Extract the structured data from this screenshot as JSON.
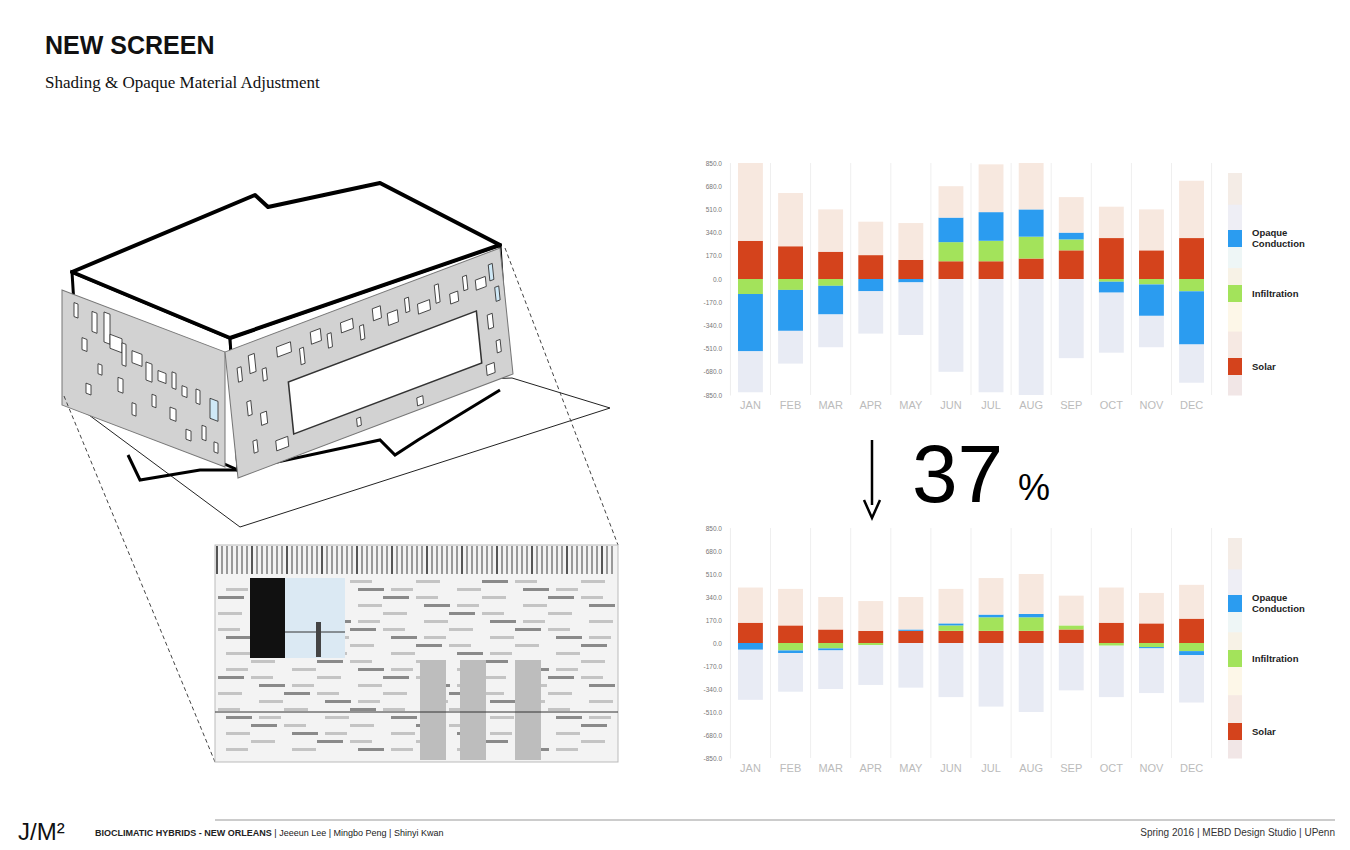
{
  "page": {
    "title": "NEW SCREEN",
    "subtitle": "Shading & Opaque Material Adjustment",
    "change": {
      "value": 37,
      "unit": "%"
    },
    "footer": {
      "logo": "J/M²",
      "project": "BIOCLIMATIC HYBRIDS - NEW ORLEANS",
      "authors": " | Jeeeun Lee | Mingbo Peng | Shinyi Kwan",
      "credit": "Spring 2016 | MEBD Design Studio | UPenn"
    }
  },
  "chart_data": [
    {
      "type": "bar",
      "stacked": true,
      "grid": true,
      "legend": "right",
      "categories": [
        "JAN",
        "FEB",
        "MAR",
        "APR",
        "MAY",
        "JUN",
        "JUL",
        "AUG",
        "SEP",
        "OCT",
        "NOV",
        "DEC"
      ],
      "ylim": [
        -850,
        850
      ],
      "yticks": [
        {
          "value": -850,
          "label": "-850.0"
        },
        {
          "value": -680,
          "label": "-680.0"
        },
        {
          "value": -510,
          "label": "-510.0"
        },
        {
          "value": -340,
          "label": "-340.0"
        },
        {
          "value": -170,
          "label": "-170.0"
        },
        {
          "value": 0,
          "label": "0.0"
        },
        {
          "value": 170,
          "label": "170.0"
        },
        {
          "value": 340,
          "label": "340.0"
        },
        {
          "value": 510,
          "label": "510.0"
        },
        {
          "value": 680,
          "label": "680.0"
        },
        {
          "value": 850,
          "label": "850.0"
        }
      ],
      "series": [
        {
          "name": "Opaque Conduction",
          "color": "#2b9cf0",
          "values": [
            -420,
            -300,
            -210,
            -90,
            -25,
            180,
            210,
            200,
            50,
            -80,
            -230,
            -390
          ]
        },
        {
          "name": "Infiltration",
          "color": "#a3e35b",
          "values": [
            -110,
            -80,
            -50,
            0,
            0,
            140,
            150,
            160,
            80,
            -20,
            -40,
            -90
          ]
        },
        {
          "name": "Solar",
          "color": "#d4431c",
          "values": [
            280,
            240,
            200,
            175,
            140,
            130,
            130,
            150,
            210,
            300,
            210,
            300
          ]
        },
        {
          "color": "#f7e8df",
          "values": [
            570,
            390,
            310,
            245,
            270,
            230,
            350,
            340,
            260,
            230,
            300,
            420
          ]
        },
        {
          "color": "#e8ebf4",
          "values": [
            -300,
            -240,
            -240,
            -310,
            -385,
            -680,
            -830,
            -850,
            -580,
            -440,
            -230,
            -280
          ]
        }
      ]
    },
    {
      "type": "bar",
      "stacked": true,
      "grid": true,
      "legend": "right",
      "categories": [
        "JAN",
        "FEB",
        "MAR",
        "APR",
        "MAY",
        "JUN",
        "JUL",
        "AUG",
        "SEP",
        "OCT",
        "NOV",
        "DEC"
      ],
      "ylim": [
        -850,
        850
      ],
      "yticks": [
        {
          "value": -850,
          "label": "-850.0"
        },
        {
          "value": -680,
          "label": "-680.0"
        },
        {
          "value": -510,
          "label": "-510.0"
        },
        {
          "value": -340,
          "label": "-340.0"
        },
        {
          "value": -170,
          "label": "-170.0"
        },
        {
          "value": 0,
          "label": "0.0"
        },
        {
          "value": 170,
          "label": "170.0"
        },
        {
          "value": 340,
          "label": "340.0"
        },
        {
          "value": 510,
          "label": "510.0"
        },
        {
          "value": 680,
          "label": "680.0"
        },
        {
          "value": 850,
          "label": "850.0"
        }
      ],
      "series": [
        {
          "name": "Opaque Conduction",
          "color": "#2b9cf0",
          "values": [
            -50,
            -20,
            -15,
            0,
            10,
            15,
            20,
            25,
            0,
            0,
            -10,
            -30
          ]
        },
        {
          "name": "Infiltration",
          "color": "#a3e35b",
          "values": [
            0,
            -55,
            -40,
            -15,
            0,
            40,
            100,
            100,
            30,
            -20,
            -30,
            -60
          ]
        },
        {
          "name": "Solar",
          "color": "#d4431c",
          "values": [
            150,
            130,
            100,
            90,
            90,
            90,
            90,
            90,
            100,
            150,
            145,
            180
          ]
        },
        {
          "color": "#f7e8df",
          "values": [
            260,
            270,
            240,
            220,
            240,
            255,
            270,
            295,
            220,
            260,
            225,
            250
          ]
        },
        {
          "color": "#e8ebf4",
          "values": [
            -370,
            -285,
            -285,
            -295,
            -330,
            -400,
            -470,
            -510,
            -350,
            -380,
            -330,
            -350
          ]
        }
      ]
    }
  ]
}
